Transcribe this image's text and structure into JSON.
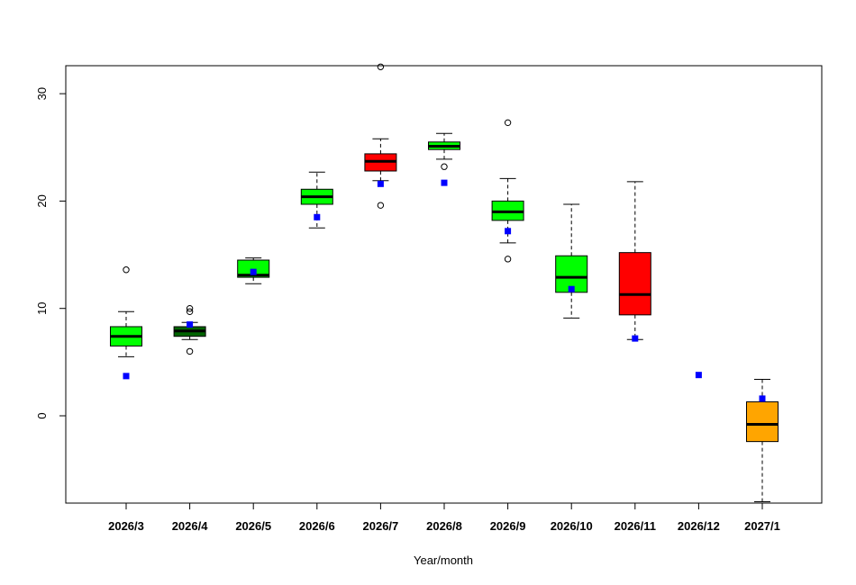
{
  "chart_data": {
    "type": "boxplot",
    "title": "",
    "xlabel": "Year/month",
    "ylabel": "",
    "ylim": [
      -8,
      32.5
    ],
    "y_ticks": [
      0,
      10,
      20,
      30
    ],
    "y_tick_labels": [
      "0",
      "10",
      "20",
      "30"
    ],
    "grid": false,
    "legend": "none",
    "categories": [
      "2026/3",
      "2026/4",
      "2026/5",
      "2026/6",
      "2026/7",
      "2026/8",
      "2026/9",
      "2026/10",
      "2026/11",
      "2026/12",
      "2027/1"
    ],
    "boxes": [
      {
        "category": "2026/3",
        "whisker_low": 5.5,
        "q1": 6.5,
        "median": 7.4,
        "q3": 8.3,
        "whisker_high": 9.7,
        "outliers": [
          13.6
        ],
        "marker": 3.7,
        "fill": "#00ff00"
      },
      {
        "category": "2026/4",
        "whisker_low": 7.1,
        "q1": 7.4,
        "median": 7.9,
        "q3": 8.3,
        "whisker_high": 8.7,
        "outliers": [
          6.0,
          9.7,
          10.0
        ],
        "marker": 8.5,
        "fill": "#006400"
      },
      {
        "category": "2026/5",
        "whisker_low": 12.3,
        "q1": 12.9,
        "median": 13.1,
        "q3": 14.5,
        "whisker_high": 14.7,
        "outliers": [],
        "marker": 13.4,
        "fill": "#00ff00"
      },
      {
        "category": "2026/6",
        "whisker_low": 17.5,
        "q1": 19.7,
        "median": 20.4,
        "q3": 21.1,
        "whisker_high": 22.7,
        "outliers": [],
        "marker": 18.5,
        "fill": "#00ff00"
      },
      {
        "category": "2026/7",
        "whisker_low": 21.9,
        "q1": 22.8,
        "median": 23.7,
        "q3": 24.4,
        "whisker_high": 25.8,
        "outliers": [
          19.6,
          32.5
        ],
        "marker": 21.6,
        "fill": "#ff0000"
      },
      {
        "category": "2026/8",
        "whisker_low": 23.9,
        "q1": 24.8,
        "median": 25.1,
        "q3": 25.5,
        "whisker_high": 26.3,
        "outliers": [
          23.2
        ],
        "marker": 21.7,
        "fill": "#00ff00"
      },
      {
        "category": "2026/9",
        "whisker_low": 16.1,
        "q1": 18.2,
        "median": 19.0,
        "q3": 20.0,
        "whisker_high": 22.1,
        "outliers": [
          14.6,
          27.3
        ],
        "marker": 17.2,
        "fill": "#00ff00"
      },
      {
        "category": "2026/10",
        "whisker_low": 9.1,
        "q1": 11.5,
        "median": 12.9,
        "q3": 14.9,
        "whisker_high": 19.7,
        "outliers": [],
        "marker": 11.8,
        "fill": "#00ff00"
      },
      {
        "category": "2026/11",
        "whisker_low": 7.1,
        "q1": 9.4,
        "median": 11.3,
        "q3": 15.2,
        "whisker_high": 21.8,
        "outliers": [],
        "marker": 7.2,
        "fill": "#ff0000"
      },
      {
        "category": "2026/12",
        "marker": 3.8
      },
      {
        "category": "2027/1",
        "whisker_low": -8,
        "q1": -2.4,
        "median": -0.8,
        "q3": 1.3,
        "whisker_high": 3.4,
        "outliers": [],
        "marker": 1.6,
        "fill": "#ffa500"
      }
    ],
    "marker_color": "#0000ff",
    "box_stroke": "#000000"
  }
}
